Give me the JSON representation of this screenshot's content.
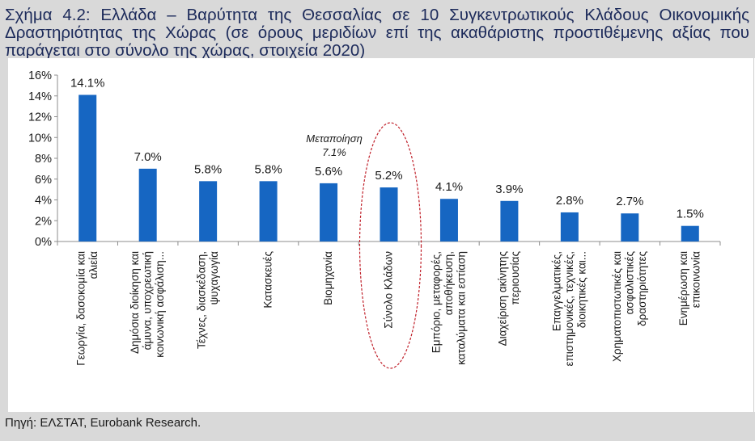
{
  "title": "Σχήμα 4.2: Ελλάδα – Βαρύτητα της Θεσσαλίας σε 10 Συγκεντρωτικούς Κλάδους Οικονομικής Δραστηριότητας της Χώρας (σε όρους μεριδίων επί της ακαθάριστης προστιθέμενης αξίας που παράγεται στο σύνολο της χώρας, στοιχεία 2020)",
  "source": "Πηγή: ΕΛΣΤΑΤ, Eurobank Research.",
  "colors": {
    "bar": "#1666c2",
    "highlight_ellipse": "#c0202a",
    "background_band": "#d9d9d9"
  },
  "chart_data": {
    "type": "bar",
    "title": "",
    "xlabel": "",
    "ylabel": "",
    "ylim": [
      0,
      16
    ],
    "y_ticks": [
      "0%",
      "2%",
      "4%",
      "6%",
      "8%",
      "10%",
      "12%",
      "14%",
      "16%"
    ],
    "grid": false,
    "categories": [
      [
        "Γεωργία, δασοκομία και",
        "αλιεία"
      ],
      [
        "Δημόσια διοίκηση και",
        "άμυνα, υποχρεωτική",
        "κοινωνική ασφάλιση..."
      ],
      [
        "Τέχνες, διασκέδαση,",
        "ψυχαγωγία"
      ],
      [
        "Κατασκευές"
      ],
      [
        "Βιομηχανία"
      ],
      [
        "Σύνολο Κλάδων"
      ],
      [
        "Εμπόριο, μεταφορές,",
        "αποθήκευση,",
        "καταλύματα και εστίαση"
      ],
      [
        "Διαχείριση ακίνητης",
        "περιουσίας"
      ],
      [
        "Επαγγελματικές,",
        "επιστημονικές, τεχνικές,",
        "διοικητικές και..."
      ],
      [
        "Χρηματοπιστωτικές και",
        "ασφαλιστικές",
        "δραστηριότητες"
      ],
      [
        "Ενημέρωση και",
        "επικοινωνία"
      ]
    ],
    "values": [
      14.1,
      7.0,
      5.8,
      5.8,
      5.6,
      5.2,
      4.1,
      3.9,
      2.8,
      2.7,
      1.5
    ],
    "value_labels": [
      "14.1%",
      "7.0%",
      "5.8%",
      "5.8%",
      "5.6%",
      "5.2%",
      "4.1%",
      "3.9%",
      "2.8%",
      "2.7%",
      "1.5%"
    ],
    "annotation": {
      "category": "Βιομηχανία",
      "line1": "Μεταποίηση",
      "line2": "7.1%"
    },
    "highlighted_category": "Σύνολο Κλάδων"
  }
}
